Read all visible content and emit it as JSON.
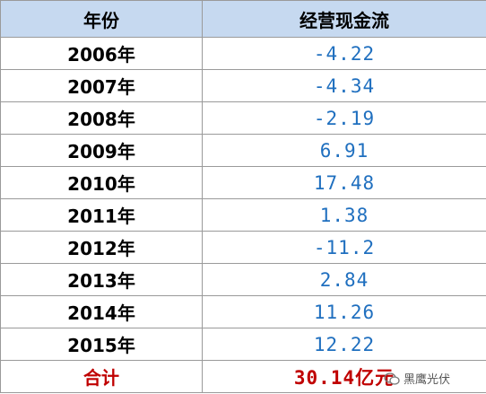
{
  "table": {
    "header": [
      "年份",
      "经营现金流"
    ],
    "rows": [
      [
        "2006年",
        "-4.22"
      ],
      [
        "2007年",
        "-4.34"
      ],
      [
        "2008年",
        "-2.19"
      ],
      [
        "2009年",
        "6.91"
      ],
      [
        "2010年",
        "17.48"
      ],
      [
        "2011年",
        "1.38"
      ],
      [
        "2012年",
        "-11.2"
      ],
      [
        "2013年",
        "2.84"
      ],
      [
        "2014年",
        "11.26"
      ],
      [
        "2015年",
        "12.22"
      ]
    ],
    "total": [
      "合计",
      "30.14亿元"
    ]
  },
  "watermark": "黑鹰光伏"
}
